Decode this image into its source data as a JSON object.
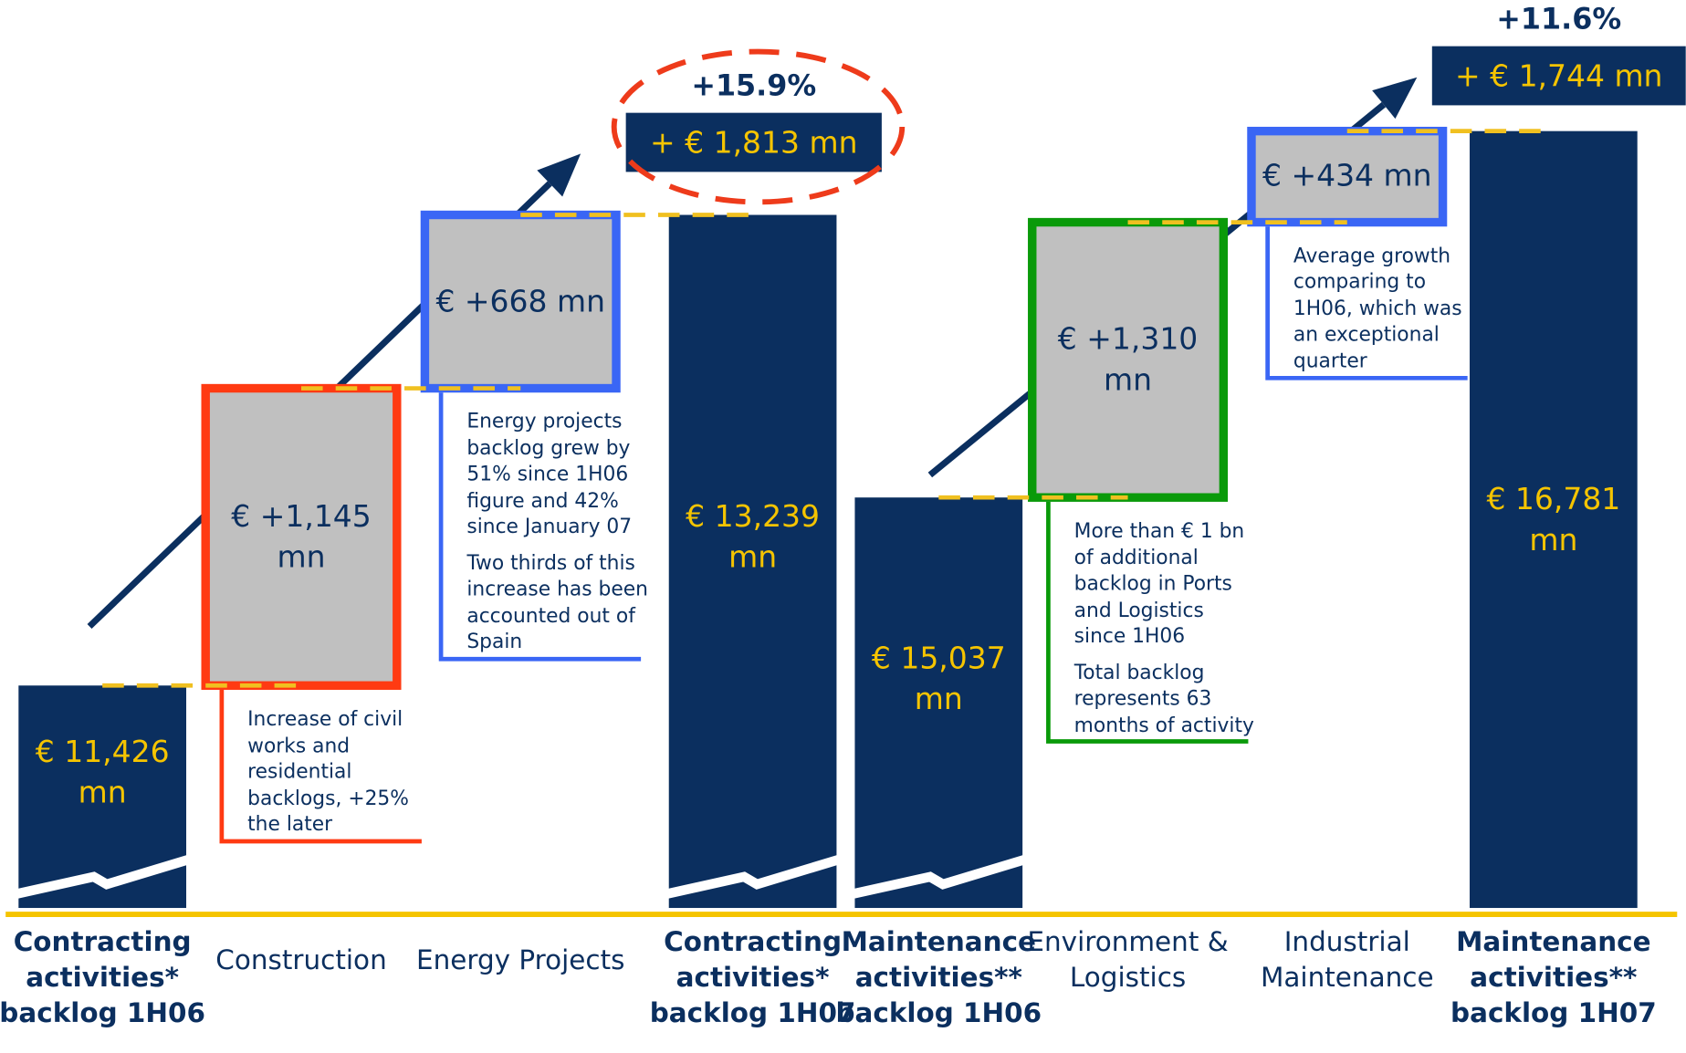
{
  "chart_data": [
    {
      "type": "waterfall",
      "categories": [
        "Contracting activities* backlog 1H06",
        "Construction",
        "Energy Projects",
        "Contracting activities* backlog 1H07"
      ],
      "values": [
        11426,
        1145,
        668,
        13239
      ],
      "value_labels": [
        "€ 11,426 mn",
        "€ +1,145 mn",
        "€ +668 mn",
        "€ 13,239 mn"
      ],
      "colors": [
        "#0b2f5f",
        "#ff3a12",
        "#3a66f5",
        "#0b2f5f"
      ],
      "notes": [
        null,
        [
          "Increase of civil works and residential backlogs, +25% the later"
        ],
        [
          "Energy projects backlog grew by 51% since 1H06 figure and 42% since January 07",
          "Two thirds of this increase has been accounted out of Spain"
        ],
        null
      ],
      "change": {
        "value": 1813,
        "label": "+ € 1,813 mn"
      },
      "change_percent": {
        "value": 15.9,
        "label": "+15.9%"
      }
    },
    {
      "type": "waterfall",
      "categories": [
        "Maintenance activities** backlog 1H06",
        "Environment & Logistics",
        "Industrial Maintenance",
        "Maintenance activities** backlog 1H07"
      ],
      "values": [
        15037,
        1310,
        434,
        16781
      ],
      "value_labels": [
        "€ 15,037 mn",
        "€ +1,310 mn",
        "€ +434 mn",
        "€ 16,781 mn"
      ],
      "colors": [
        "#0b2f5f",
        "#0a9a0a",
        "#3a66f5",
        "#0b2f5f"
      ],
      "notes": [
        null,
        [
          "More than € 1 bn of additional backlog in Ports and Logistics since 1H06",
          "Total backlog represents 63 months of activity"
        ],
        [
          "Average growth comparing to 1H06, which was an exceptional quarter"
        ],
        null
      ],
      "change": {
        "value": 1744,
        "label": "+ € 1,744 mn"
      },
      "change_percent": {
        "value": 11.6,
        "label": "+11.6%"
      }
    }
  ]
}
